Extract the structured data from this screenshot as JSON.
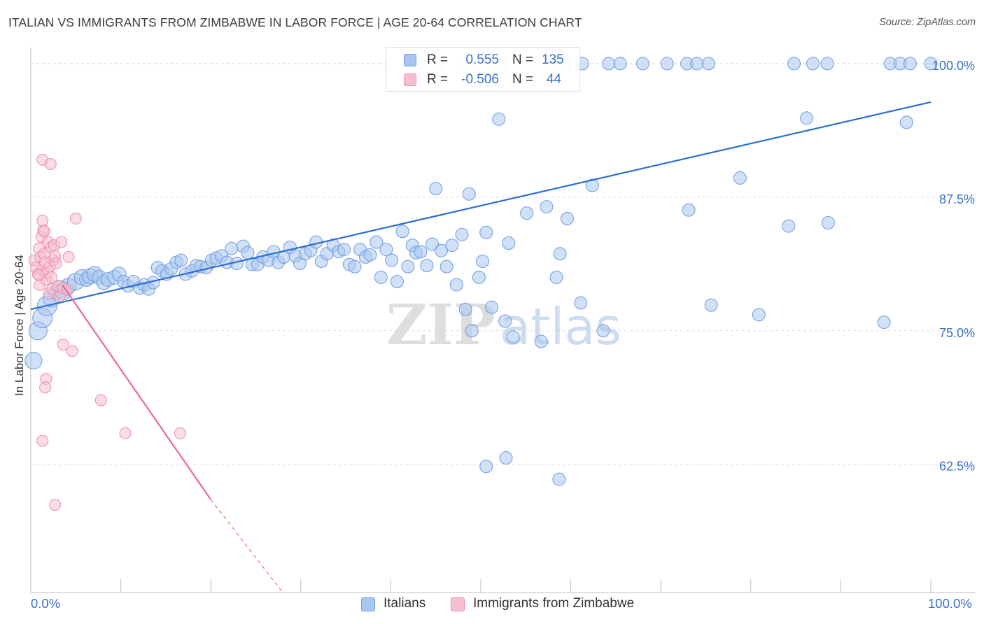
{
  "title": "ITALIAN VS IMMIGRANTS FROM ZIMBABWE IN LABOR FORCE | AGE 20-64 CORRELATION CHART",
  "source": "Source: ZipAtlas.com",
  "watermark": {
    "zip": "ZIP",
    "atlas": "atlas"
  },
  "legend": {
    "italians": {
      "r_label": "R =",
      "r_value": "0.555",
      "n_label": "N =",
      "n_value": "135"
    },
    "zimbabwe": {
      "r_label": "R =",
      "r_value": "-0.506",
      "n_label": "N =",
      "n_value": "44"
    }
  },
  "colors": {
    "blue_fill": "#a9c6ee",
    "blue_stroke": "#6d9be0",
    "blue_line": "#2b6fd1",
    "pink_fill": "#f6bfd0",
    "pink_stroke": "#ec8eac",
    "pink_line": "#e8699a",
    "tick_text": "#3a70c8",
    "grid": "#dddddd"
  },
  "chart_data": {
    "type": "scatter",
    "xlabel": "",
    "ylabel": "In Labor Force | Age 20-64",
    "x_tick_labels": [
      "0.0%",
      "100.0%"
    ],
    "y_tick_labels": [
      "100.0%",
      "87.5%",
      "75.0%",
      "62.5%"
    ],
    "y_ticks": [
      100.0,
      87.5,
      75.0,
      62.5
    ],
    "xlim": [
      0,
      100
    ],
    "ylim": [
      50.5,
      101.5
    ],
    "grid": true,
    "series": [
      {
        "name": "Italians",
        "color": "#a9c6ee",
        "trend": {
          "x": [
            0,
            100
          ],
          "y": [
            77.0,
            96.4
          ]
        },
        "points": [
          [
            0.3,
            72.2,
            12
          ],
          [
            0.8,
            75.0,
            13
          ],
          [
            1.3,
            76.2,
            14
          ],
          [
            1.8,
            77.3,
            14
          ],
          [
            2.3,
            78.0,
            12
          ],
          [
            2.8,
            78.6,
            10
          ],
          [
            3.3,
            78.9,
            12
          ],
          [
            3.6,
            78.7,
            12
          ],
          [
            4.2,
            79.2,
            11
          ],
          [
            5.0,
            79.6,
            12
          ],
          [
            5.7,
            80.0,
            11
          ],
          [
            6.2,
            79.8,
            10
          ],
          [
            6.6,
            80.1,
            11
          ],
          [
            7.1,
            80.3,
            11
          ],
          [
            7.6,
            80.0,
            10
          ],
          [
            8.1,
            79.5,
            10
          ],
          [
            8.6,
            79.8,
            10
          ],
          [
            9.3,
            80.0,
            10
          ],
          [
            9.8,
            80.3,
            10
          ],
          [
            10.3,
            79.6,
            9
          ],
          [
            10.8,
            79.2,
            9
          ],
          [
            11.4,
            79.6,
            9
          ],
          [
            12.1,
            79.0,
            9
          ],
          [
            12.6,
            79.3,
            9
          ],
          [
            13.1,
            78.9,
            9
          ],
          [
            13.6,
            79.5,
            9
          ],
          [
            14.1,
            80.9,
            9
          ],
          [
            14.6,
            80.6,
            9
          ],
          [
            15.1,
            80.3,
            9
          ],
          [
            15.6,
            80.8,
            9
          ],
          [
            16.2,
            81.4,
            9
          ],
          [
            16.7,
            81.6,
            9
          ],
          [
            17.2,
            80.3,
            9
          ],
          [
            17.9,
            80.6,
            9
          ],
          [
            18.4,
            81.1,
            9
          ],
          [
            18.9,
            81.0,
            9
          ],
          [
            19.5,
            80.9,
            9
          ],
          [
            20.1,
            81.6,
            9
          ],
          [
            20.6,
            81.8,
            9
          ],
          [
            21.2,
            82.0,
            9
          ],
          [
            21.8,
            81.4,
            9
          ],
          [
            22.3,
            82.7,
            9
          ],
          [
            22.9,
            81.3,
            9
          ],
          [
            23.6,
            82.9,
            9
          ],
          [
            24.1,
            82.3,
            9
          ],
          [
            24.6,
            81.2,
            9
          ],
          [
            25.2,
            81.2,
            9
          ],
          [
            25.8,
            81.9,
            9
          ],
          [
            26.4,
            81.6,
            9
          ],
          [
            27.0,
            82.4,
            9
          ],
          [
            27.5,
            81.4,
            9
          ],
          [
            28.1,
            81.9,
            9
          ],
          [
            28.8,
            82.8,
            9
          ],
          [
            29.4,
            82.0,
            9
          ],
          [
            29.9,
            81.3,
            9
          ],
          [
            30.5,
            82.2,
            9
          ],
          [
            31.1,
            82.5,
            9
          ],
          [
            31.7,
            83.3,
            9
          ],
          [
            32.3,
            81.5,
            9
          ],
          [
            32.9,
            82.2,
            9
          ],
          [
            33.6,
            83.0,
            9
          ],
          [
            34.2,
            82.4,
            9
          ],
          [
            34.8,
            82.6,
            9
          ],
          [
            35.4,
            81.2,
            9
          ],
          [
            36.0,
            81.0,
            9
          ],
          [
            36.6,
            82.6,
            9
          ],
          [
            37.2,
            81.9,
            9
          ],
          [
            37.7,
            82.1,
            9
          ],
          [
            38.4,
            83.3,
            9
          ],
          [
            38.9,
            80.0,
            9
          ],
          [
            39.5,
            82.6,
            9
          ],
          [
            40.1,
            81.6,
            9
          ],
          [
            40.7,
            79.6,
            9
          ],
          [
            41.3,
            84.3,
            9
          ],
          [
            41.9,
            81.0,
            9
          ],
          [
            42.4,
            83.0,
            9
          ],
          [
            42.8,
            82.3,
            9
          ],
          [
            43.3,
            82.4,
            9
          ],
          [
            44.0,
            81.1,
            9
          ],
          [
            44.6,
            83.1,
            9
          ],
          [
            45.0,
            88.3,
            9
          ],
          [
            45.6,
            82.5,
            9
          ],
          [
            46.2,
            81.0,
            9
          ],
          [
            46.8,
            83.0,
            9
          ],
          [
            47.3,
            79.3,
            9
          ],
          [
            47.9,
            84.0,
            9
          ],
          [
            48.3,
            77.0,
            9
          ],
          [
            48.7,
            87.8,
            9
          ],
          [
            49.0,
            75.0,
            9
          ],
          [
            49.8,
            80.0,
            9
          ],
          [
            50.2,
            81.5,
            9
          ],
          [
            50.6,
            84.2,
            9
          ],
          [
            51.2,
            77.2,
            9
          ],
          [
            52.0,
            94.8,
            9
          ],
          [
            52.7,
            75.9,
            9
          ],
          [
            53.1,
            83.2,
            9
          ],
          [
            53.6,
            74.4,
            9
          ],
          [
            55.1,
            86.0,
            9
          ],
          [
            56.7,
            74.0,
            9
          ],
          [
            57.3,
            86.6,
            9
          ],
          [
            58.4,
            80.0,
            9
          ],
          [
            58.8,
            82.2,
            9
          ],
          [
            59.6,
            85.5,
            9
          ],
          [
            61.1,
            77.6,
            9
          ],
          [
            62.4,
            88.6,
            9
          ],
          [
            63.6,
            75.0,
            9
          ],
          [
            73.1,
            86.3,
            9
          ],
          [
            75.6,
            77.4,
            9
          ],
          [
            78.8,
            89.3,
            9
          ],
          [
            80.9,
            76.5,
            9
          ],
          [
            84.2,
            84.8,
            9
          ],
          [
            86.2,
            94.9,
            9
          ],
          [
            88.6,
            85.1,
            9
          ],
          [
            94.8,
            75.8,
            9
          ],
          [
            50.6,
            62.3,
            9
          ],
          [
            52.8,
            63.1,
            9
          ],
          [
            58.7,
            61.1,
            9
          ],
          [
            97.3,
            94.5,
            9
          ],
          [
            45.3,
            100.0,
            9
          ],
          [
            48.1,
            100.0,
            9
          ],
          [
            52.2,
            100.0,
            9
          ],
          [
            58.0,
            100.0,
            9
          ],
          [
            59.5,
            100.0,
            9
          ],
          [
            61.3,
            100.0,
            9
          ],
          [
            64.2,
            100.0,
            9
          ],
          [
            65.5,
            100.0,
            9
          ],
          [
            68.0,
            100.0,
            9
          ],
          [
            70.7,
            100.0,
            9
          ],
          [
            72.9,
            100.0,
            9
          ],
          [
            74.0,
            100.0,
            9
          ],
          [
            75.3,
            100.0,
            9
          ],
          [
            84.8,
            100.0,
            9
          ],
          [
            86.9,
            100.0,
            9
          ],
          [
            88.5,
            100.0,
            9
          ],
          [
            95.5,
            100.0,
            9
          ],
          [
            96.6,
            100.0,
            9
          ],
          [
            97.7,
            100.0,
            9
          ],
          [
            100.0,
            100.0,
            9
          ]
        ]
      },
      {
        "name": "Immigrants from Zimbabwe",
        "color": "#f6bfd0",
        "trend": {
          "x": [
            3.5,
            20.0
          ],
          "y": [
            79.3,
            59.2
          ]
        },
        "trend_dashed": {
          "x": [
            20.0,
            28.0
          ],
          "y": [
            59.2,
            50.5
          ]
        },
        "points": [
          [
            0.4,
            81.6,
            8
          ],
          [
            0.6,
            80.9,
            8
          ],
          [
            0.8,
            80.3,
            8
          ],
          [
            0.9,
            82.7,
            8
          ],
          [
            1.0,
            79.3,
            8
          ],
          [
            1.1,
            81.9,
            8
          ],
          [
            1.2,
            83.8,
            8
          ],
          [
            1.3,
            80.7,
            8
          ],
          [
            1.4,
            84.4,
            8
          ],
          [
            1.5,
            82.2,
            8
          ],
          [
            1.6,
            81.4,
            8
          ],
          [
            1.7,
            79.8,
            8
          ],
          [
            1.8,
            80.4,
            8
          ],
          [
            1.9,
            83.3,
            8
          ],
          [
            2.0,
            78.5,
            8
          ],
          [
            2.1,
            81.0,
            8
          ],
          [
            2.2,
            82.8,
            8
          ],
          [
            2.3,
            80.0,
            8
          ],
          [
            2.4,
            78.9,
            8
          ],
          [
            2.5,
            81.6,
            8
          ],
          [
            2.6,
            83.0,
            8
          ],
          [
            1.3,
            85.3,
            8
          ],
          [
            1.5,
            84.3,
            8
          ],
          [
            1.3,
            91.0,
            8
          ],
          [
            2.2,
            90.6,
            8
          ],
          [
            2.7,
            82.0,
            8
          ],
          [
            2.8,
            81.3,
            8
          ],
          [
            3.0,
            79.2,
            8
          ],
          [
            3.2,
            78.2,
            8
          ],
          [
            3.4,
            83.3,
            8
          ],
          [
            3.6,
            79.0,
            8
          ],
          [
            4.1,
            78.8,
            8
          ],
          [
            5.0,
            85.5,
            8
          ],
          [
            4.2,
            81.9,
            8
          ],
          [
            3.6,
            73.7,
            8
          ],
          [
            4.6,
            73.1,
            8
          ],
          [
            1.7,
            70.5,
            8
          ],
          [
            1.6,
            69.7,
            8
          ],
          [
            7.8,
            68.5,
            8
          ],
          [
            10.5,
            65.4,
            8
          ],
          [
            16.6,
            65.4,
            8
          ],
          [
            1.3,
            64.7,
            8
          ],
          [
            2.7,
            58.7,
            8
          ],
          [
            0.9,
            80.2,
            8
          ]
        ]
      }
    ]
  }
}
